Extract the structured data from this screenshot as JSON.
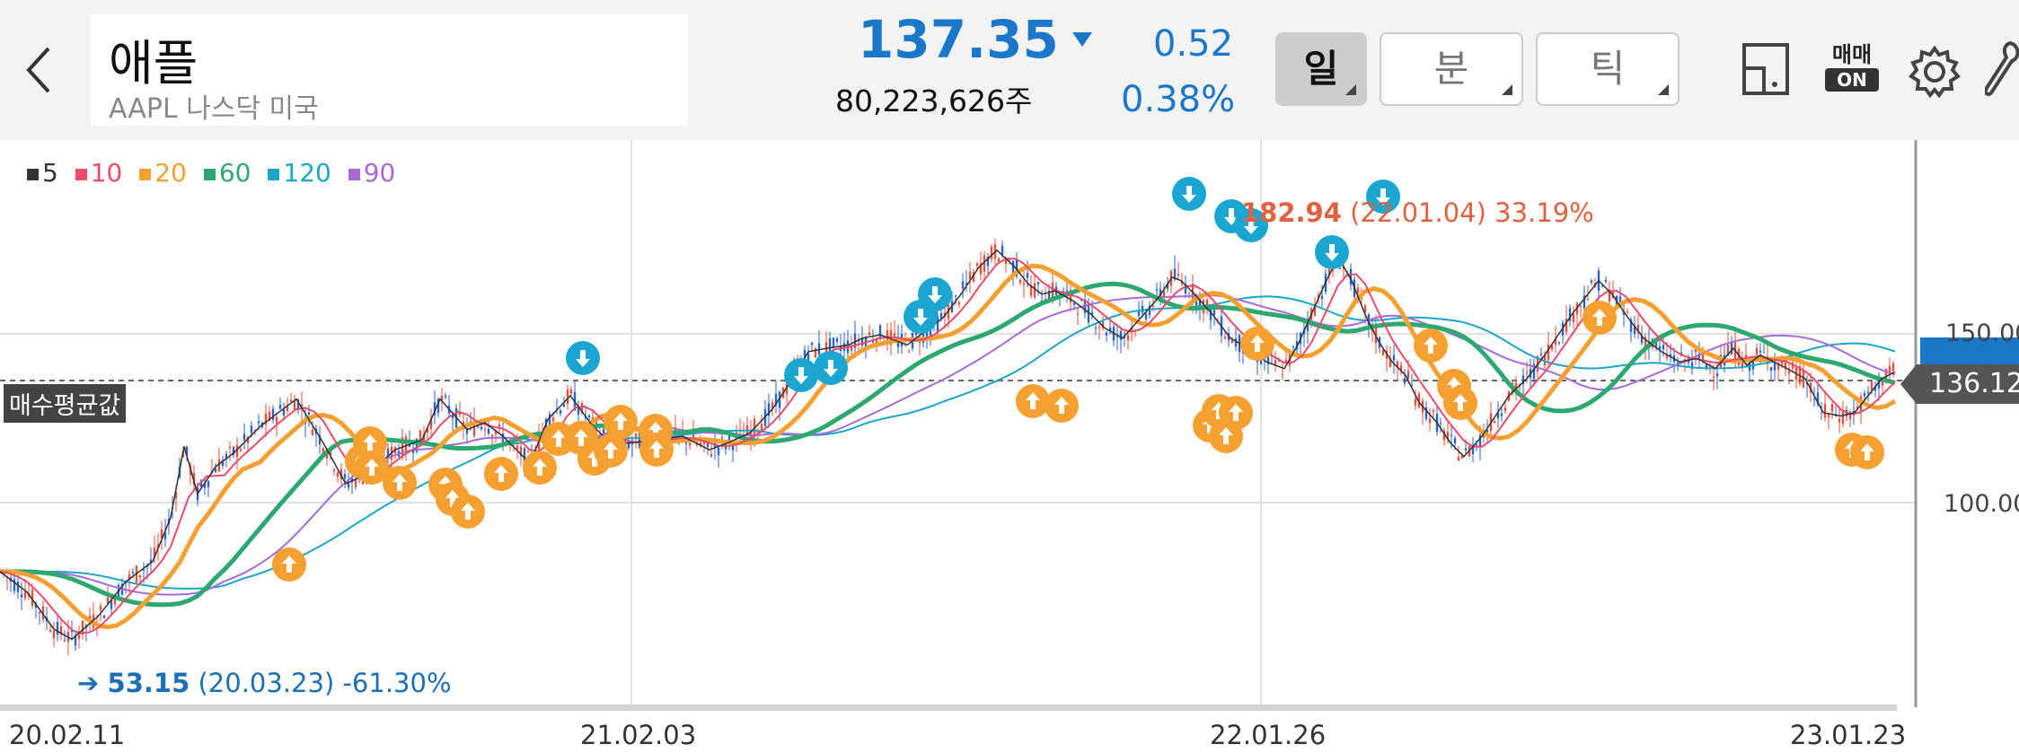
{
  "header": {
    "stock_name": "애플",
    "stock_sub": "AAPL 나스닥 미국",
    "price": "137.35",
    "volume": "80,223,626주",
    "change": "0.52",
    "change_pct": "0.38%",
    "periods": [
      "일",
      "분",
      "틱"
    ],
    "active_period": "일",
    "trade_badge_top": "매매",
    "trade_badge_bottom": "ON"
  },
  "legend": [
    {
      "label": "5",
      "color": "#333333"
    },
    {
      "label": "10",
      "color": "#e94b6a"
    },
    {
      "label": "20",
      "color": "#f5a030"
    },
    {
      "label": "60",
      "color": "#2ca870"
    },
    {
      "label": "120",
      "color": "#1aa6c9"
    },
    {
      "label": "90",
      "color": "#a66ad6"
    }
  ],
  "chart_data": {
    "type": "candlestick",
    "x_ticks": [
      "20.02.11",
      "21.02.03",
      "22.01.26",
      "23.01.23"
    ],
    "y_ticks": [
      "150.00",
      "100.00"
    ],
    "avg_label": "매수평균값",
    "avg_price": "136.12",
    "high_value": "182.94",
    "high_note": "(22.01.04) 33.19%",
    "low_value": "53.15",
    "low_note": "(20.03.23) -61.30%",
    "ma5": [
      [
        0,
        80
      ],
      [
        30,
        74
      ],
      [
        60,
        63
      ],
      [
        80,
        60
      ],
      [
        110,
        67
      ],
      [
        140,
        77
      ],
      [
        170,
        83
      ],
      [
        190,
        96
      ],
      [
        205,
        117
      ],
      [
        220,
        103
      ],
      [
        240,
        111
      ],
      [
        260,
        115
      ],
      [
        290,
        123
      ],
      [
        310,
        127
      ],
      [
        330,
        131
      ],
      [
        360,
        118
      ],
      [
        385,
        106
      ],
      [
        410,
        109
      ],
      [
        440,
        116
      ],
      [
        470,
        119
      ],
      [
        490,
        131
      ],
      [
        520,
        122
      ],
      [
        540,
        124
      ],
      [
        560,
        120
      ],
      [
        590,
        112
      ],
      [
        610,
        125
      ],
      [
        635,
        132
      ],
      [
        660,
        123
      ],
      [
        680,
        118
      ],
      [
        700,
        118
      ],
      [
        730,
        119
      ],
      [
        760,
        120
      ],
      [
        790,
        116
      ],
      [
        810,
        118
      ],
      [
        835,
        121
      ],
      [
        860,
        128
      ],
      [
        880,
        136
      ],
      [
        900,
        145
      ],
      [
        920,
        146
      ],
      [
        945,
        147
      ],
      [
        960,
        149
      ],
      [
        980,
        150
      ],
      [
        1010,
        147
      ],
      [
        1030,
        151
      ],
      [
        1050,
        155
      ],
      [
        1070,
        162
      ],
      [
        1090,
        170
      ],
      [
        1110,
        175
      ],
      [
        1130,
        170
      ],
      [
        1145,
        165
      ],
      [
        1160,
        162
      ],
      [
        1175,
        163
      ],
      [
        1195,
        160
      ],
      [
        1215,
        156
      ],
      [
        1230,
        152
      ],
      [
        1250,
        149
      ],
      [
        1270,
        155
      ],
      [
        1290,
        161
      ],
      [
        1305,
        167
      ],
      [
        1315,
        166
      ],
      [
        1330,
        162
      ],
      [
        1350,
        156
      ],
      [
        1370,
        149
      ],
      [
        1390,
        146
      ],
      [
        1410,
        142
      ],
      [
        1430,
        140
      ],
      [
        1445,
        147
      ],
      [
        1460,
        156
      ],
      [
        1475,
        165
      ],
      [
        1490,
        173
      ],
      [
        1505,
        166
      ],
      [
        1520,
        156
      ],
      [
        1535,
        148
      ],
      [
        1550,
        142
      ],
      [
        1565,
        138
      ],
      [
        1580,
        130
      ],
      [
        1600,
        124
      ],
      [
        1615,
        118
      ],
      [
        1630,
        114
      ],
      [
        1650,
        120
      ],
      [
        1665,
        126
      ],
      [
        1680,
        132
      ],
      [
        1700,
        137
      ],
      [
        1720,
        144
      ],
      [
        1735,
        150
      ],
      [
        1750,
        156
      ],
      [
        1765,
        161
      ],
      [
        1780,
        166
      ],
      [
        1795,
        162
      ],
      [
        1810,
        156
      ],
      [
        1830,
        149
      ],
      [
        1850,
        145
      ],
      [
        1870,
        142
      ],
      [
        1890,
        143
      ],
      [
        1910,
        140
      ],
      [
        1930,
        146
      ],
      [
        1945,
        141
      ],
      [
        1960,
        144
      ],
      [
        1975,
        142
      ],
      [
        1990,
        140
      ],
      [
        2010,
        137
      ],
      [
        2030,
        127
      ],
      [
        2050,
        126
      ],
      [
        2065,
        127
      ],
      [
        2080,
        132
      ],
      [
        2095,
        137
      ],
      [
        2110,
        139
      ]
    ]
  }
}
